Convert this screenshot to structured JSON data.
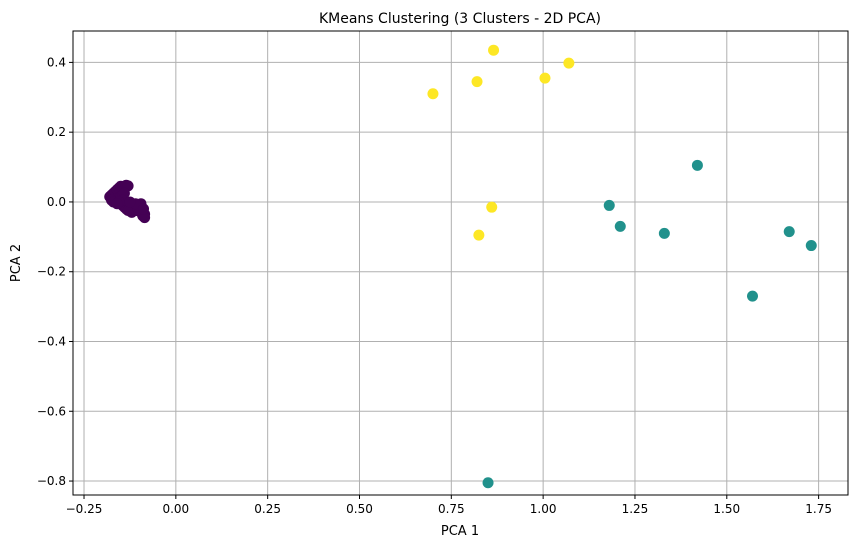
{
  "chart_data": {
    "type": "scatter",
    "title": "KMeans Clustering (3 Clusters - 2D PCA)",
    "xlabel": "PCA 1",
    "ylabel": "PCA 2",
    "xlim": [
      -0.28,
      1.83
    ],
    "ylim": [
      -0.84,
      0.49
    ],
    "xticks": [
      -0.25,
      0.0,
      0.25,
      0.5,
      0.75,
      1.0,
      1.25,
      1.5,
      1.75
    ],
    "xtick_labels": [
      "−0.25",
      "0.00",
      "0.25",
      "0.50",
      "0.75",
      "1.00",
      "1.25",
      "1.50",
      "1.75"
    ],
    "yticks": [
      -0.8,
      -0.6,
      -0.4,
      -0.2,
      0.0,
      0.2,
      0.4
    ],
    "ytick_labels": [
      "−0.8",
      "−0.6",
      "−0.4",
      "−0.2",
      "0.0",
      "0.2",
      "0.4"
    ],
    "grid": true,
    "colors": {
      "cluster_0": "#440154",
      "cluster_1": "#21918c",
      "cluster_2": "#fde725",
      "grid": "#b0b0b0"
    },
    "series": [
      {
        "cluster": 0,
        "color": "#440154",
        "points": [
          [
            -0.18,
            0.015
          ],
          [
            -0.175,
            0.02
          ],
          [
            -0.17,
            0.025
          ],
          [
            -0.165,
            0.03
          ],
          [
            -0.16,
            0.035
          ],
          [
            -0.155,
            0.04
          ],
          [
            -0.15,
            0.045
          ],
          [
            -0.145,
            0.04
          ],
          [
            -0.14,
            0.045
          ],
          [
            -0.135,
            0.048
          ],
          [
            -0.13,
            0.046
          ],
          [
            -0.16,
            0.01
          ],
          [
            -0.15,
            0.015
          ],
          [
            -0.145,
            0.02
          ],
          [
            -0.14,
            0.025
          ],
          [
            -0.175,
            0.005
          ],
          [
            -0.17,
            0.0
          ],
          [
            -0.15,
            -0.005
          ],
          [
            -0.145,
            -0.01
          ],
          [
            -0.14,
            -0.015
          ],
          [
            -0.135,
            -0.02
          ],
          [
            -0.13,
            -0.01
          ],
          [
            -0.125,
            -0.005
          ],
          [
            -0.12,
            -0.01
          ],
          [
            -0.115,
            -0.015
          ],
          [
            -0.11,
            -0.02
          ],
          [
            -0.105,
            -0.025
          ],
          [
            -0.1,
            -0.02
          ],
          [
            -0.095,
            -0.03
          ],
          [
            -0.09,
            -0.025
          ],
          [
            -0.085,
            -0.035
          ],
          [
            -0.09,
            -0.04
          ],
          [
            -0.085,
            -0.045
          ],
          [
            -0.1,
            -0.01
          ],
          [
            -0.095,
            -0.005
          ],
          [
            -0.12,
            -0.03
          ],
          [
            -0.115,
            -0.025
          ],
          [
            -0.13,
            -0.025
          ],
          [
            -0.105,
            -0.015
          ],
          [
            -0.11,
            -0.005
          ],
          [
            -0.145,
            0.005
          ],
          [
            -0.155,
            0.0
          ],
          [
            -0.16,
            -0.005
          ],
          [
            -0.125,
            0.0
          ],
          [
            -0.088,
            -0.02
          ]
        ]
      },
      {
        "cluster": 1,
        "color": "#21918c",
        "points": [
          [
            1.18,
            -0.01
          ],
          [
            1.21,
            -0.07
          ],
          [
            1.33,
            -0.09
          ],
          [
            1.42,
            0.105
          ],
          [
            1.57,
            -0.27
          ],
          [
            1.67,
            -0.085
          ],
          [
            1.73,
            -0.125
          ],
          [
            0.85,
            -0.805
          ]
        ]
      },
      {
        "cluster": 2,
        "color": "#fde725",
        "points": [
          [
            0.7,
            0.31
          ],
          [
            0.82,
            0.345
          ],
          [
            0.865,
            0.435
          ],
          [
            1.005,
            0.355
          ],
          [
            1.07,
            0.398
          ],
          [
            0.86,
            -0.015
          ],
          [
            0.825,
            -0.095
          ]
        ]
      }
    ]
  }
}
